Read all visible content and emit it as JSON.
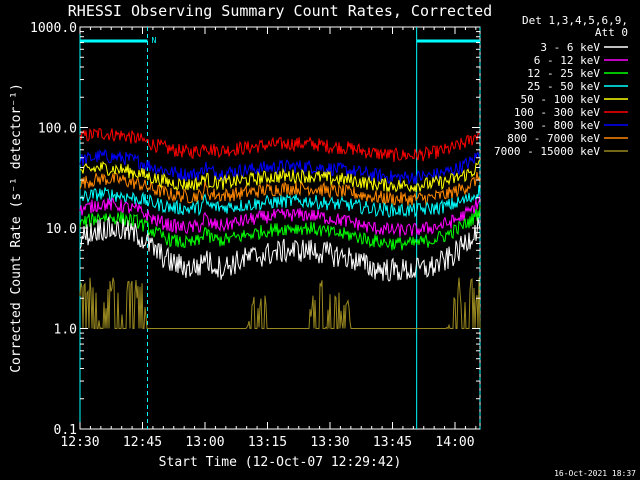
{
  "chart_data": {
    "type": "line",
    "title": "RHESSI Observing Summary Count Rates, Corrected",
    "xlabel": "Start Time (12-Oct-07 12:29:42)",
    "ylabel": "Corrected Count Rate (s⁻¹ detector⁻¹)",
    "y_scale": "log",
    "ylim": [
      0.1,
      1000.0
    ],
    "xlim_minutes": [
      0,
      96
    ],
    "x_ticks": [
      {
        "t": 0,
        "label": "12:30"
      },
      {
        "t": 15,
        "label": "12:45"
      },
      {
        "t": 30,
        "label": "13:00"
      },
      {
        "t": 45,
        "label": "13:15"
      },
      {
        "t": 60,
        "label": "13:30"
      },
      {
        "t": 75,
        "label": "13:45"
      },
      {
        "t": 90,
        "label": "14:00"
      }
    ],
    "y_ticks": [
      {
        "v": 0.1,
        "label": "0.1"
      },
      {
        "v": 1.0,
        "label": "1.0"
      },
      {
        "v": 10.0,
        "label": "10.0"
      },
      {
        "v": 100.0,
        "label": "100.0"
      },
      {
        "v": 1000.0,
        "label": "1000.0"
      }
    ],
    "legend_header": [
      "Det 1,3,4,5,6,9,",
      "Att 0"
    ],
    "legend_placement": "right",
    "timestamp": "16-Oct-2021 18:37",
    "night_bar_label": "N",
    "night_intervals": [
      [
        0,
        16.2
      ],
      [
        80.8,
        96
      ]
    ],
    "series": [
      {
        "name": "3 - 6 keV",
        "color": "#ffffff",
        "x": [
          0,
          5,
          10,
          14,
          18,
          22,
          26,
          29,
          30,
          31,
          34,
          40,
          45,
          50,
          55,
          60,
          65,
          70,
          75,
          80,
          84,
          88,
          91,
          94,
          96
        ],
        "values": [
          8,
          10,
          9.5,
          8.5,
          6,
          4.5,
          4,
          4.2,
          5.5,
          4.5,
          4,
          5,
          5.5,
          6,
          6,
          5.5,
          5,
          4,
          3.8,
          3.8,
          4,
          4.8,
          6,
          8.5,
          11
        ]
      },
      {
        "name": "6 - 12 keV",
        "color": "#ff00ff",
        "x": [
          0,
          5,
          10,
          14,
          18,
          22,
          26,
          29,
          30,
          31,
          34,
          40,
          45,
          50,
          55,
          60,
          65,
          70,
          75,
          80,
          84,
          88,
          91,
          94,
          96
        ],
        "values": [
          15,
          17.5,
          16.5,
          15,
          12,
          10.5,
          10,
          10.5,
          13,
          11,
          10.5,
          12,
          13,
          13.5,
          13.5,
          12.5,
          11.5,
          10,
          9.5,
          9.5,
          10,
          11,
          12.5,
          15,
          19
        ]
      },
      {
        "name": "12 - 25 keV",
        "color": "#00ff00",
        "x": [
          0,
          5,
          10,
          14,
          18,
          22,
          26,
          29,
          30,
          31,
          34,
          40,
          45,
          50,
          55,
          60,
          65,
          70,
          75,
          80,
          84,
          88,
          91,
          94,
          96
        ],
        "values": [
          11,
          13,
          12.5,
          11.5,
          9,
          7.5,
          7,
          7.5,
          10,
          8,
          7.5,
          8.5,
          9.5,
          10,
          10,
          9,
          8.5,
          7.5,
          7,
          7,
          7.5,
          8.5,
          10,
          12,
          15
        ]
      },
      {
        "name": "25 - 50 keV",
        "color": "#00ffff",
        "x": [
          0,
          5,
          10,
          14,
          18,
          22,
          26,
          29,
          30,
          31,
          34,
          40,
          45,
          50,
          55,
          60,
          65,
          70,
          75,
          80,
          84,
          88,
          91,
          94,
          96
        ],
        "values": [
          20,
          22,
          21,
          19.5,
          17.5,
          16,
          15.5,
          16,
          19,
          16.5,
          16,
          17,
          18,
          18.5,
          18.5,
          17.5,
          17,
          15.5,
          15,
          15,
          15.5,
          16.5,
          18,
          20,
          24
        ]
      },
      {
        "name": "50 - 100 keV",
        "color": "#ffff00",
        "x": [
          0,
          5,
          10,
          14,
          18,
          22,
          26,
          29,
          30,
          31,
          34,
          40,
          45,
          50,
          55,
          60,
          65,
          70,
          75,
          80,
          84,
          88,
          91,
          94,
          96
        ],
        "values": [
          36,
          40,
          38,
          35,
          31,
          28,
          27,
          28,
          33,
          29,
          28,
          30,
          32,
          33,
          33,
          31,
          30,
          27.5,
          26.5,
          26.5,
          27.5,
          29,
          32,
          36,
          43
        ]
      },
      {
        "name": "100 - 300 keV",
        "color": "#ff0000",
        "x": [
          0,
          5,
          10,
          14,
          18,
          22,
          26,
          29,
          30,
          31,
          34,
          40,
          45,
          50,
          55,
          60,
          65,
          70,
          75,
          80,
          84,
          88,
          91,
          94,
          96
        ],
        "values": [
          80,
          88,
          84,
          77,
          67,
          60,
          57,
          59,
          70,
          61,
          59,
          63,
          67,
          69,
          69,
          65,
          62,
          56,
          53,
          53,
          55,
          60,
          66,
          76,
          90
        ]
      },
      {
        "name": "300 - 800 keV",
        "color": "#0000ff",
        "x": [
          0,
          5,
          10,
          14,
          18,
          22,
          26,
          29,
          30,
          31,
          34,
          40,
          45,
          50,
          55,
          60,
          65,
          70,
          75,
          80,
          84,
          88,
          91,
          94,
          96
        ],
        "values": [
          47,
          52,
          50,
          46,
          40,
          36,
          34,
          35,
          42,
          37,
          35,
          38,
          40,
          41,
          41,
          39,
          37,
          34,
          32,
          32,
          33,
          36,
          40,
          46,
          56
        ]
      },
      {
        "name": "800 - 7000 keV",
        "color": "#ff8800",
        "x": [
          0,
          5,
          10,
          14,
          18,
          22,
          26,
          29,
          30,
          31,
          34,
          40,
          45,
          50,
          55,
          60,
          65,
          70,
          75,
          80,
          84,
          88,
          91,
          94,
          96
        ],
        "values": [
          28,
          31,
          30,
          27.5,
          24,
          21.5,
          20.5,
          21,
          25.5,
          22,
          21,
          22.5,
          24,
          25,
          25,
          23.5,
          22.5,
          20.5,
          19.5,
          19.5,
          20,
          21.5,
          24,
          27.5,
          33
        ]
      },
      {
        "name": "7000 - 15000 keV",
        "color": "#99881f",
        "x": [
          0,
          3,
          5,
          8,
          10,
          12,
          15,
          16,
          20,
          25,
          30,
          35,
          40,
          41,
          42,
          43,
          44,
          45,
          50,
          55,
          56,
          57,
          58,
          59,
          60,
          61,
          62,
          63,
          64,
          65,
          70,
          80,
          88,
          90,
          91,
          92,
          93,
          94,
          95,
          96
        ],
        "values": [
          2,
          2.5,
          1,
          3,
          1.5,
          2.5,
          2,
          1,
          1,
          1,
          1,
          1,
          1,
          1.5,
          2,
          1,
          2.5,
          1,
          1,
          1,
          2,
          1.5,
          2.5,
          1,
          2,
          1.5,
          2.5,
          1,
          1.8,
          1,
          1,
          1,
          1,
          1.8,
          2.5,
          1,
          2,
          2.5,
          1.5,
          3
        ]
      }
    ]
  }
}
